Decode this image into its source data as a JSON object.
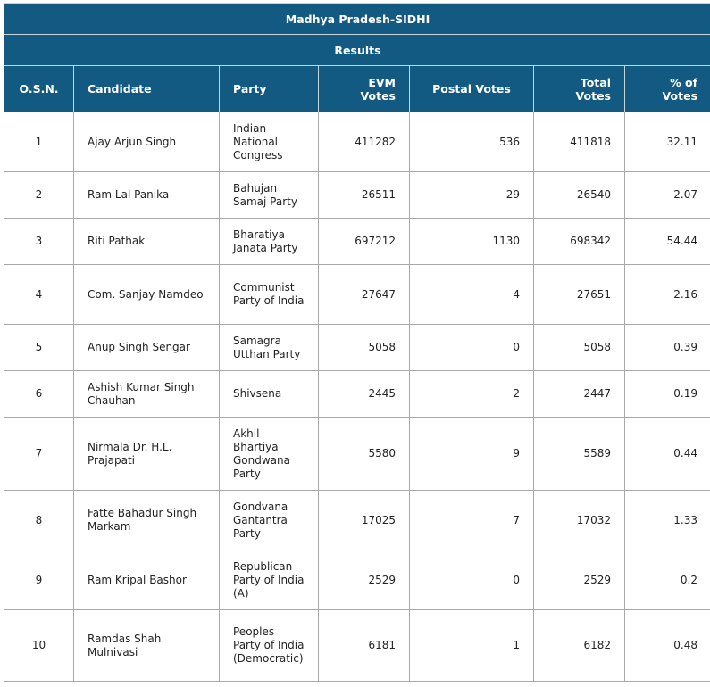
{
  "title": "Madhya Pradesh-SIDHI",
  "subtitle": "Results",
  "columns": [
    "O.S.N.",
    "Candidate",
    "Party",
    "EVM Votes",
    "Postal Votes",
    "Total Votes",
    "% of Votes"
  ],
  "header_color": "#135a83",
  "rows": [
    {
      "osn": "1",
      "candidate": "Ajay Arjun Singh",
      "party": "Indian National Congress",
      "evm": "411282",
      "postal": "536",
      "total": "411818",
      "pct": "32.11"
    },
    {
      "osn": "2",
      "candidate": "Ram Lal Panika",
      "party": "Bahujan Samaj Party",
      "evm": "26511",
      "postal": "29",
      "total": "26540",
      "pct": "2.07"
    },
    {
      "osn": "3",
      "candidate": "Riti Pathak",
      "party": "Bharatiya Janata Party",
      "evm": "697212",
      "postal": "1130",
      "total": "698342",
      "pct": "54.44"
    },
    {
      "osn": "4",
      "candidate": "Com. Sanjay Namdeo",
      "party": "Communist Party of India",
      "evm": "27647",
      "postal": "4",
      "total": "27651",
      "pct": "2.16"
    },
    {
      "osn": "5",
      "candidate": "Anup Singh Sengar",
      "party": "Samagra Utthan Party",
      "evm": "5058",
      "postal": "0",
      "total": "5058",
      "pct": "0.39"
    },
    {
      "osn": "6",
      "candidate": "Ashish Kumar Singh Chauhan",
      "party": "Shivsena",
      "evm": "2445",
      "postal": "2",
      "total": "2447",
      "pct": "0.19"
    },
    {
      "osn": "7",
      "candidate": "Nirmala Dr. H.L. Prajapati",
      "party": "Akhil Bhartiya Gondwana Party",
      "evm": "5580",
      "postal": "9",
      "total": "5589",
      "pct": "0.44"
    },
    {
      "osn": "8",
      "candidate": "Fatte Bahadur Singh Markam",
      "party": "Gondvana Gantantra Party",
      "evm": "17025",
      "postal": "7",
      "total": "17032",
      "pct": "1.33"
    },
    {
      "osn": "9",
      "candidate": "Ram Kripal Bashor",
      "party": "Republican Party of India (A)",
      "evm": "2529",
      "postal": "0",
      "total": "2529",
      "pct": "0.2"
    },
    {
      "osn": "10",
      "candidate": "Ramdas Shah Mulnivasi",
      "party": "Peoples Party of India (Democratic)",
      "evm": "6181",
      "postal": "1",
      "total": "6182",
      "pct": "0.48"
    }
  ]
}
